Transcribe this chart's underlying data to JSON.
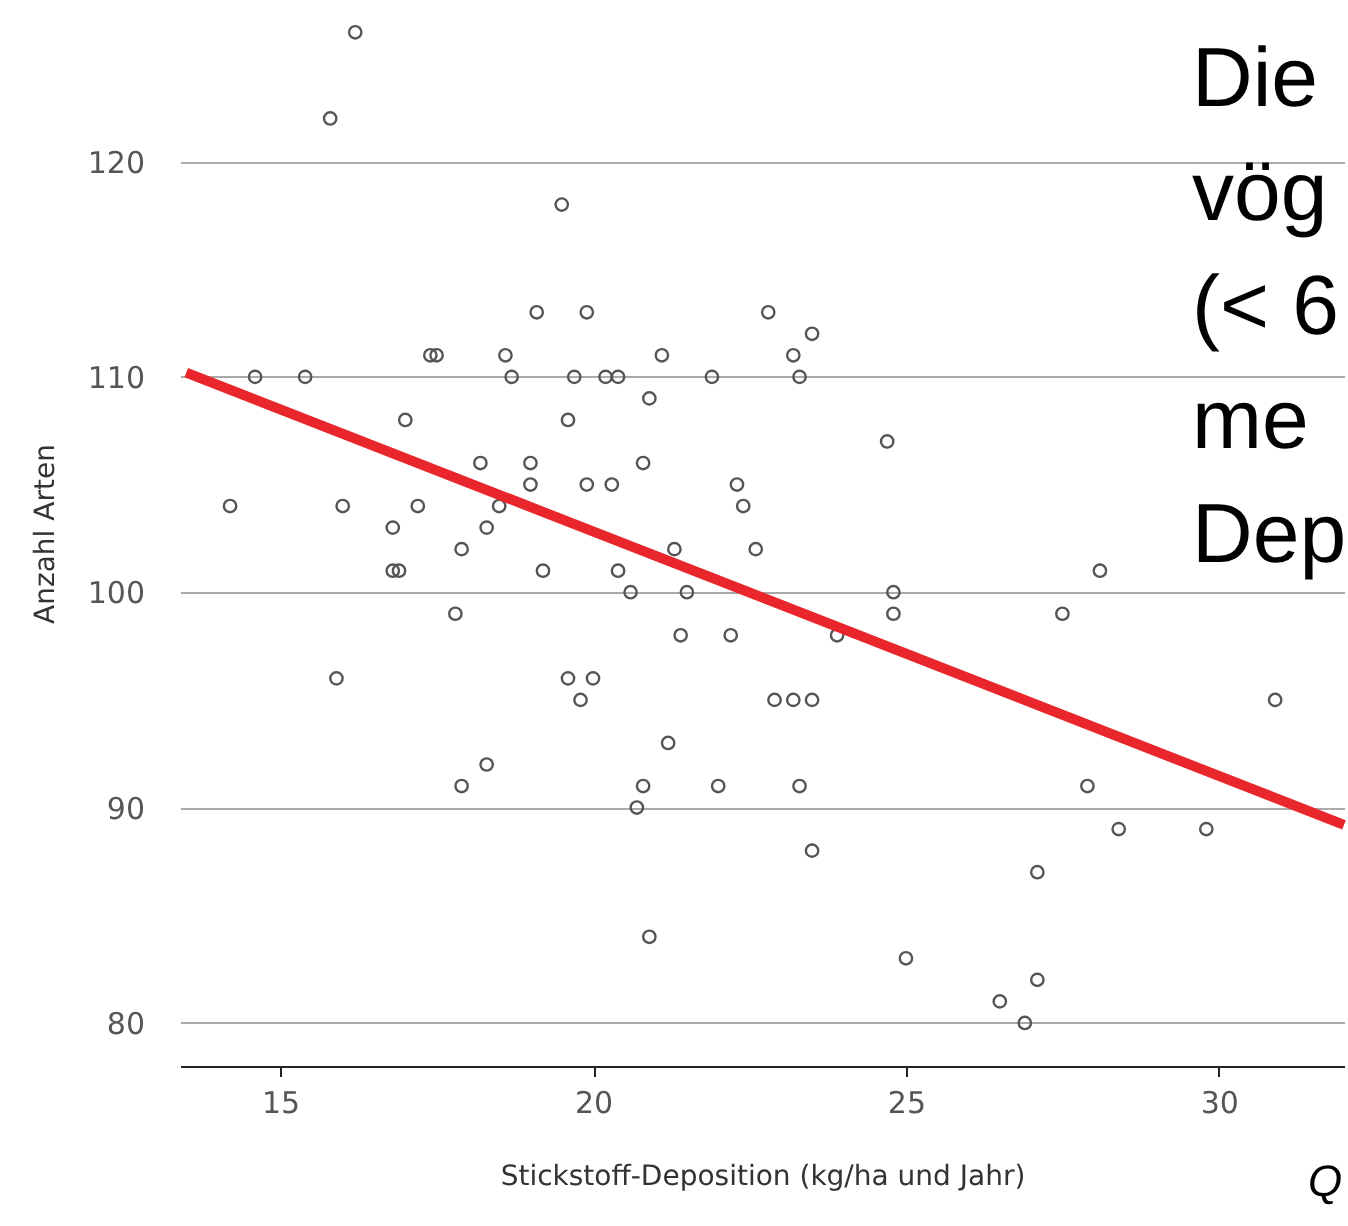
{
  "chart_data": {
    "type": "scatter",
    "xlabel": "Stickstoff-Deposition (kg/ha und Jahr)",
    "ylabel": "Anzahl Arten",
    "x": [
      16.2,
      15.8,
      19.5,
      19.1,
      19.9,
      22.8,
      23.5,
      14.6,
      15.4,
      17.4,
      17.5,
      18.6,
      18.7,
      19.7,
      20.2,
      20.4,
      21.1,
      21.9,
      23.2,
      23.3,
      20.9,
      17.0,
      19.6,
      24.7,
      18.2,
      19.0,
      20.8,
      14.2,
      16.0,
      17.2,
      18.5,
      19.0,
      19.9,
      20.3,
      22.3,
      22.4,
      16.8,
      18.3,
      16.8,
      16.9,
      17.9,
      19.2,
      20.4,
      20.6,
      21.3,
      21.5,
      22.6,
      24.8,
      24.8,
      17.8,
      21.4,
      22.2,
      23.9,
      27.5,
      28.1,
      15.9,
      19.6,
      20.0,
      19.8,
      22.9,
      23.2,
      23.5,
      30.9,
      21.2,
      18.3,
      17.9,
      20.8,
      22.0,
      23.3,
      27.9,
      20.7,
      28.4,
      29.8,
      23.5,
      27.1,
      20.9,
      25.0,
      26.5,
      27.1,
      26.9
    ],
    "series": [
      {
        "color": "#555555",
        "marker": "circle",
        "values": [
          126,
          122,
          118,
          113,
          113,
          113,
          112,
          110,
          110,
          111,
          111,
          111,
          110,
          110,
          110,
          110,
          111,
          110,
          111,
          110,
          109,
          108,
          108,
          107,
          106,
          106,
          106,
          104,
          104,
          104,
          104,
          105,
          105,
          105,
          105,
          104,
          103,
          103,
          101,
          101,
          102,
          101,
          101,
          100,
          102,
          100,
          102,
          100,
          99,
          99,
          98,
          98,
          98,
          99,
          101,
          96,
          96,
          96,
          95,
          95,
          95,
          95,
          95,
          93,
          92,
          91,
          91,
          91,
          91,
          91,
          90,
          89,
          89,
          88,
          87,
          84,
          83,
          81,
          82,
          80
        ]
      },
      {
        "type": "line",
        "color": "#e8262b",
        "line_style": "solid",
        "x": [
          13.5,
          32
        ],
        "values": [
          110.2,
          89.2
        ]
      }
    ],
    "xlim": [
      13.4,
      32
    ],
    "ylim": [
      78,
      127.5
    ],
    "xticks": [
      15,
      20,
      25,
      30
    ],
    "yticks": [
      80,
      90,
      100,
      110,
      120
    ],
    "grid": "y",
    "annotations": [
      "Die",
      "vög",
      "(< 6",
      "me",
      "Dep",
      "Q"
    ]
  }
}
